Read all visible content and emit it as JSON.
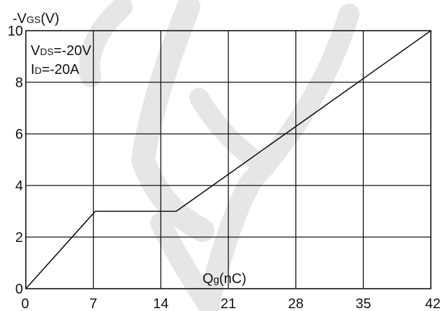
{
  "chart_data": {
    "type": "line",
    "ylabel": {
      "prefix": "-V",
      "sub": "GS",
      "suffix": "(V)"
    },
    "xlabel": {
      "prefix": "Q",
      "sub": "g",
      "suffix": "(nC)"
    },
    "annotations": [
      {
        "prefix": "V",
        "sub": "DS",
        "suffix": "=-20V"
      },
      {
        "prefix": "I",
        "sub": "D",
        "suffix": "=-20A"
      }
    ],
    "xlim": [
      0,
      42
    ],
    "ylim": [
      0,
      10
    ],
    "xticks": [
      0,
      7,
      14,
      21,
      28,
      35,
      42
    ],
    "yticks": [
      0,
      2,
      4,
      6,
      8,
      10
    ],
    "x_tick_labels": [
      "0",
      "7",
      "14",
      "21",
      "28",
      "35",
      "42"
    ],
    "y_tick_labels": [
      "0",
      "2",
      "4",
      "6",
      "8",
      "10"
    ],
    "grid": true,
    "series": [
      {
        "x": [
          0,
          7.2,
          15.6,
          42
        ],
        "y": [
          0,
          3.0,
          3.0,
          10.0
        ]
      }
    ],
    "colors": {
      "line": "#111111",
      "grid": "#111111",
      "watermark": "#e6e6e6"
    }
  }
}
